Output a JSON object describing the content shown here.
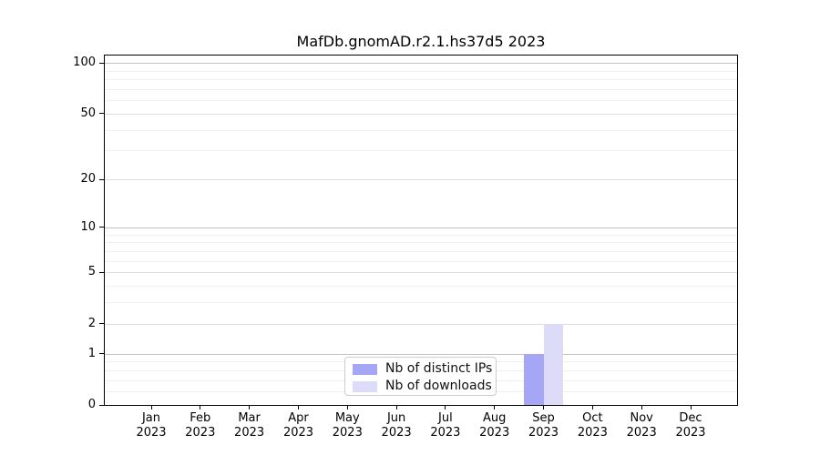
{
  "chart_data": {
    "type": "bar",
    "title": "MafDb.gnomAD.r2.1.hs37d5 2023",
    "x_categories": [
      "Jan",
      "Feb",
      "Mar",
      "Apr",
      "May",
      "Jun",
      "Jul",
      "Aug",
      "Sep",
      "Oct",
      "Nov",
      "Dec"
    ],
    "x_year": "2023",
    "series": [
      {
        "name": "Nb of distinct IPs",
        "color": "#a6a6f6",
        "values": [
          0,
          0,
          0,
          0,
          0,
          0,
          0,
          0,
          1,
          0,
          0,
          0
        ]
      },
      {
        "name": "Nb of downloads",
        "color": "#dcdcf8",
        "values": [
          0,
          0,
          0,
          0,
          0,
          0,
          0,
          0,
          2,
          0,
          0,
          0
        ]
      }
    ],
    "y_axis": {
      "scale": "log1p",
      "tick_values": [
        0,
        1,
        2,
        5,
        10,
        20,
        50,
        100
      ],
      "tick_labels": [
        "0",
        "1",
        "2",
        "5",
        "10",
        "20",
        "50",
        "100"
      ],
      "minor_tick_values": [
        0.2,
        0.4,
        0.6,
        0.8,
        3,
        4,
        6,
        7,
        8,
        9,
        30,
        40,
        60,
        70,
        80,
        90
      ],
      "ylim": [
        0,
        117
      ]
    },
    "grid": {
      "on": true,
      "major_color": "#c2c2c2",
      "labeled_minor_color": "#dedede",
      "minor_color": "#f0f0f0"
    },
    "legend": {
      "position": "inside-bottom-center"
    },
    "axis_color": "#000000"
  }
}
